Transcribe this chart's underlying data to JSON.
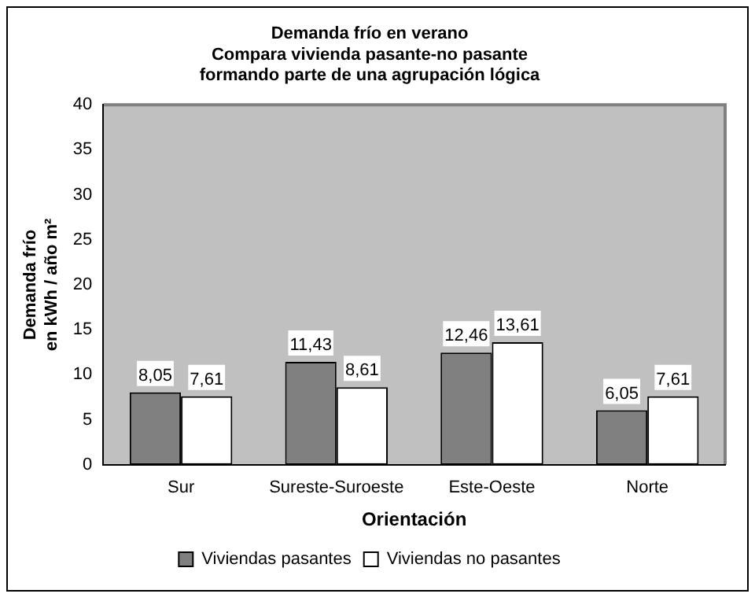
{
  "chart_data": {
    "type": "bar",
    "title": "Demanda frío en verano\nCompara vivienda pasante-no pasante\nformando parte de una agrupación lógica",
    "xlabel": "Orientación",
    "ylabel": "Demanda frío\nen kWh / año m²",
    "categories": [
      "Sur",
      "Sureste-Suroeste",
      "Este-Oeste",
      "Norte"
    ],
    "series": [
      {
        "name": "Viviendas pasantes",
        "color": "#808080",
        "values": [
          8.05,
          11.43,
          12.46,
          6.05
        ],
        "value_labels": [
          "8,05",
          "11,43",
          "12,46",
          "6,05"
        ]
      },
      {
        "name": "Viviendas no pasantes",
        "color": "#ffffff",
        "values": [
          7.61,
          8.61,
          13.61,
          7.61
        ],
        "value_labels": [
          "7,61",
          "8,61",
          "13,61",
          "7,61"
        ]
      }
    ],
    "ylim": [
      0,
      40
    ],
    "yticks": [
      0,
      5,
      10,
      15,
      20,
      25,
      30,
      35,
      40
    ],
    "grid": false,
    "legend": "bottom"
  }
}
